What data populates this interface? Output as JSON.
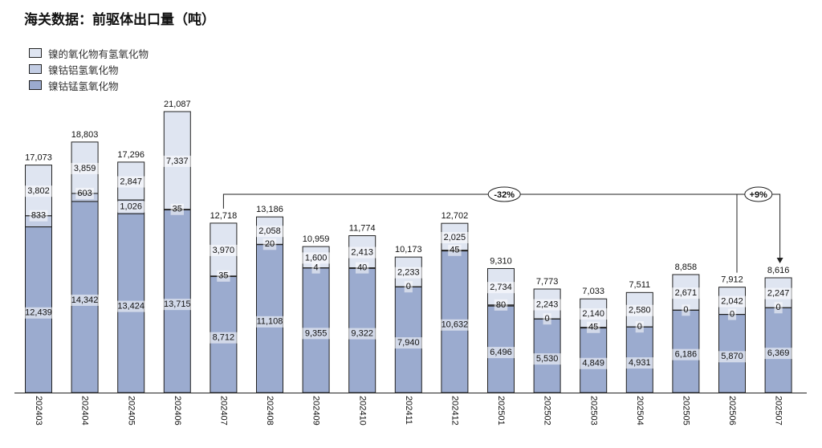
{
  "title": "海关数据：前驱体出口量（吨）",
  "legend": [
    {
      "label": "镍的氧化物有氢氧化物",
      "color": "#dfe5f1"
    },
    {
      "label": "镍钴铝氢氧化物",
      "color": "#c3cde4"
    },
    {
      "label": "镍钴锰氢氧化物",
      "color": "#9babcf"
    }
  ],
  "chart_data": {
    "type": "bar",
    "stacked": true,
    "categories": [
      "202403",
      "202404",
      "202405",
      "202406",
      "202407",
      "202408",
      "202409",
      "202410",
      "202411",
      "202412",
      "202501",
      "202502",
      "202503",
      "202504",
      "202505",
      "202506",
      "202507"
    ],
    "series": [
      {
        "name": "镍钴锰氢氧化物",
        "color": "#9babcf",
        "values": [
          12439,
          14342,
          13424,
          13715,
          8712,
          11108,
          9355,
          9322,
          7940,
          10632,
          6496,
          5530,
          4849,
          4931,
          6186,
          5870,
          6369
        ]
      },
      {
        "name": "镍钴铝氢氧化物",
        "color": "#c3cde4",
        "values": [
          833,
          603,
          1026,
          35,
          35,
          20,
          4,
          40,
          0,
          45,
          80,
          0,
          45,
          0,
          0,
          0,
          0
        ]
      },
      {
        "name": "镍的氧化物有氢氧化物",
        "color": "#dfe5f1",
        "values": [
          3802,
          3859,
          2847,
          7337,
          3970,
          2058,
          1600,
          2413,
          2233,
          2025,
          2734,
          2243,
          2140,
          2580,
          2671,
          2042,
          2247
        ]
      }
    ],
    "totals": [
      17073,
      18803,
      17296,
      21087,
      12718,
      13186,
      10959,
      11774,
      10173,
      12702,
      9310,
      7773,
      7033,
      7511,
      8858,
      7912,
      8616
    ],
    "ylim": [
      0,
      21087
    ],
    "annotations": [
      {
        "text": "-32%",
        "from": "202407",
        "to": "202506"
      },
      {
        "text": "+9%",
        "from": "202506",
        "to": "202507"
      }
    ],
    "legend_position": "top-left",
    "grid": false
  }
}
